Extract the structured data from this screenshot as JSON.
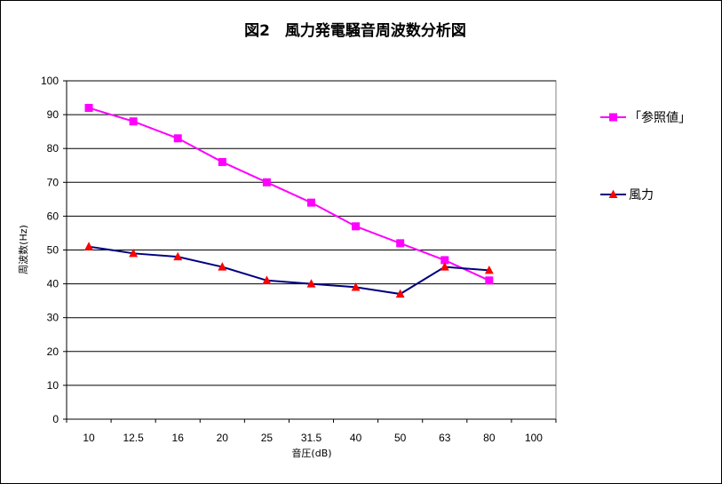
{
  "chart_data": {
    "type": "line",
    "title": "図2　風力発電騒音周波数分析図",
    "xlabel": "音圧(dB)",
    "ylabel": "周波数(Hz)",
    "categories": [
      "10",
      "12.5",
      "16",
      "20",
      "25",
      "31.5",
      "40",
      "50",
      "63",
      "80",
      "100"
    ],
    "ylim": [
      0,
      100
    ],
    "yticks": [
      0,
      10,
      20,
      30,
      40,
      50,
      60,
      70,
      80,
      90,
      100
    ],
    "grid": true,
    "legend_position": "right",
    "series": [
      {
        "name": "「参照値」",
        "color": "#ff00ff",
        "marker": "square",
        "values": [
          92,
          88,
          83,
          76,
          70,
          64,
          57,
          52,
          47,
          41,
          null
        ]
      },
      {
        "name": "風力",
        "color": "#000080",
        "marker_color": "#ff0000",
        "marker": "triangle",
        "values": [
          51,
          49,
          48,
          45,
          41,
          40,
          39,
          37,
          45,
          44,
          null
        ]
      }
    ]
  }
}
